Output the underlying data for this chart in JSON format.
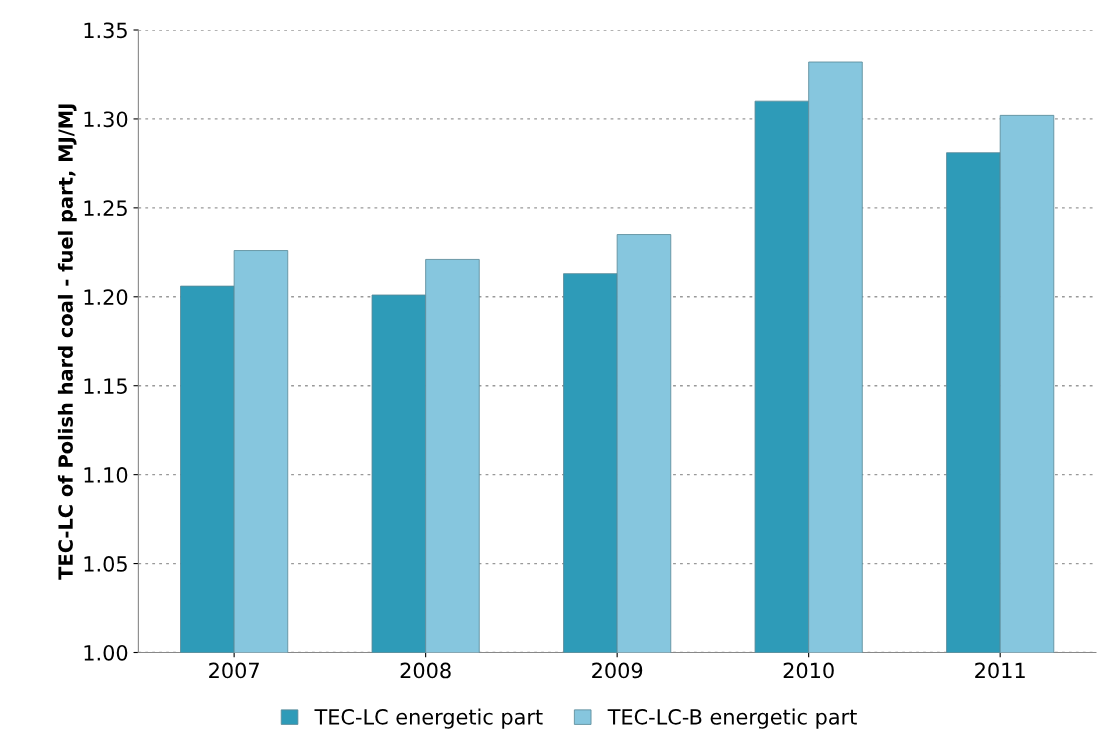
{
  "chart_data": {
    "type": "bar",
    "ylabel": "TEC-LC of Polish hard coal - fuel part, MJ/MJ",
    "categories": [
      "2007",
      "2008",
      "2009",
      "2010",
      "2011"
    ],
    "series": [
      {
        "name": "TEC-LC energetic part",
        "color": "#2e9bb8",
        "values": [
          1.206,
          1.201,
          1.213,
          1.31,
          1.281
        ]
      },
      {
        "name": "TEC-LC-B energetic part",
        "color": "#86c6de",
        "values": [
          1.226,
          1.221,
          1.235,
          1.332,
          1.302
        ]
      }
    ],
    "ylim": [
      1.0,
      1.35
    ],
    "yticks": [
      {
        "value": 1.0,
        "label": "1.00"
      },
      {
        "value": 1.05,
        "label": "1.05"
      },
      {
        "value": 1.1,
        "label": "1.10"
      },
      {
        "value": 1.15,
        "label": "1.15"
      },
      {
        "value": 1.2,
        "label": "1.20"
      },
      {
        "value": 1.25,
        "label": "1.25"
      },
      {
        "value": 1.3,
        "label": "1.30"
      },
      {
        "value": 1.35,
        "label": "1.35"
      }
    ],
    "grid": "y",
    "legend": "bottom"
  }
}
